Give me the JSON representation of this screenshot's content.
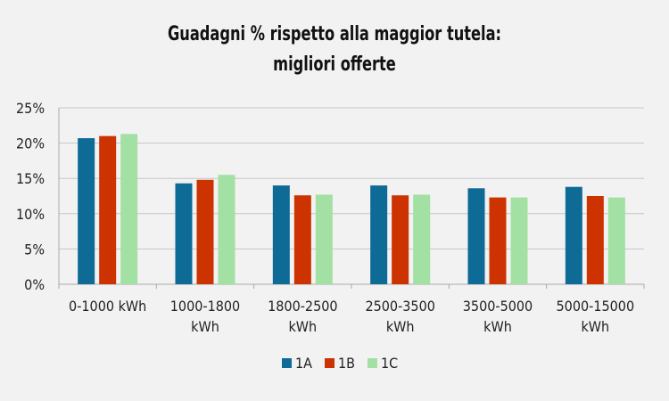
{
  "chart_data": {
    "type": "bar",
    "title_line1": "Guadagni % rispetto alla maggior tutela:",
    "title_line2": "migliori offerte",
    "categories": [
      [
        "0-1000 kWh"
      ],
      [
        "1000-1800",
        "kWh"
      ],
      [
        "1800-2500",
        "kWh"
      ],
      [
        "2500-3500",
        "kWh"
      ],
      [
        "3500-5000",
        "kWh"
      ],
      [
        "5000-15000",
        "kWh"
      ]
    ],
    "series": [
      {
        "name": "1A",
        "color": "#0e6b96",
        "values": [
          20.7,
          14.3,
          14.0,
          14.0,
          13.6,
          13.8
        ]
      },
      {
        "name": "1B",
        "color": "#cc3300",
        "values": [
          21.0,
          14.8,
          12.6,
          12.6,
          12.3,
          12.5
        ]
      },
      {
        "name": "1C",
        "color": "#a3e0a3",
        "values": [
          21.3,
          15.5,
          12.7,
          12.7,
          12.3,
          12.3
        ]
      }
    ],
    "yticks": [
      "0%",
      "5%",
      "10%",
      "15%",
      "20%",
      "25%"
    ],
    "ylim": [
      0,
      25
    ],
    "grid": true,
    "legend_position": "bottom"
  }
}
